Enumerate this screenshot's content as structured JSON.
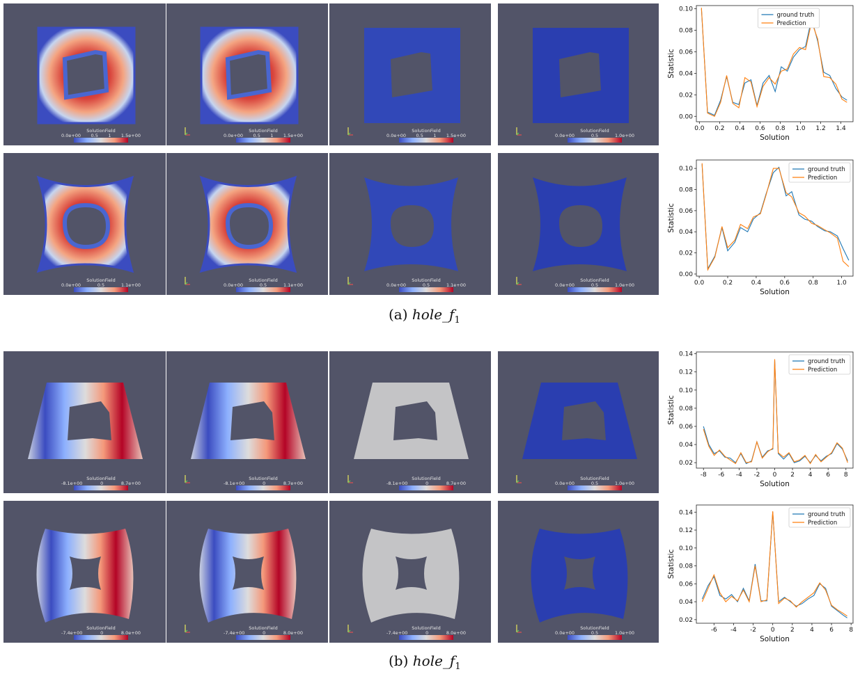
{
  "field_label": "SolutionField",
  "captions": [
    {
      "letter": "(a)",
      "name": "hole_f",
      "sub": "1"
    },
    {
      "letter": "(b)",
      "name": "hole_f",
      "sub": "1"
    }
  ],
  "rows": [
    {
      "colorbars": [
        {
          "min": "0.0e+00",
          "mid": "0.5",
          "mid2": "1",
          "max": "1.5e+00"
        },
        {
          "min": "0.0e+00",
          "mid": "0.5",
          "mid2": "1",
          "max": "1.5e+00"
        },
        {
          "min": "0.0e+00",
          "mid": "0.5",
          "mid2": "1",
          "max": "1.5e+00"
        },
        {
          "min": "0.0e+00",
          "mid": "0.5",
          "mid2": "",
          "max": "1.0e+00"
        }
      ]
    },
    {
      "colorbars": [
        {
          "min": "0.0e+00",
          "mid": "0.5",
          "mid2": "",
          "max": "1.1e+00"
        },
        {
          "min": "0.0e+00",
          "mid": "0.5",
          "mid2": "",
          "max": "1.1e+00"
        },
        {
          "min": "0.0e+00",
          "mid": "0.5",
          "mid2": "",
          "max": "1.1e+00"
        },
        {
          "min": "0.0e+00",
          "mid": "0.5",
          "mid2": "",
          "max": "1.0e+00"
        }
      ]
    },
    {
      "colorbars": [
        {
          "min": "-8.1e+00",
          "mid": "0",
          "mid2": "",
          "max": "8.7e+00"
        },
        {
          "min": "-8.1e+00",
          "mid": "0",
          "mid2": "",
          "max": "8.7e+00"
        },
        {
          "min": "-8.1e+00",
          "mid": "0",
          "mid2": "",
          "max": "8.7e+00"
        },
        {
          "min": "0.0e+00",
          "mid": "0.5",
          "mid2": "",
          "max": "1.0e+00"
        }
      ]
    },
    {
      "colorbars": [
        {
          "min": "-7.4e+00",
          "mid": "0",
          "mid2": "",
          "max": "8.0e+00"
        },
        {
          "min": "-7.4e+00",
          "mid": "0",
          "mid2": "",
          "max": "8.0e+00"
        },
        {
          "min": "-7.4e+00",
          "mid": "0",
          "mid2": "",
          "max": "8.0e+00"
        },
        {
          "min": "0.0e+00",
          "mid": "0.5",
          "mid2": "",
          "max": "1.0e+00"
        }
      ]
    }
  ],
  "colors": {
    "ground_truth": "#1f77b4",
    "prediction": "#ff7f0e",
    "background": "#525468"
  },
  "chart_data": [
    {
      "type": "line",
      "xlabel": "Solution",
      "ylabel": "Statistic",
      "xlim": [
        -0.03,
        1.52
      ],
      "ylim": [
        -0.005,
        0.103
      ],
      "xticks": [
        0.0,
        0.2,
        0.4,
        0.6,
        0.8,
        1.0,
        1.2,
        1.4
      ],
      "xtick_labels": [
        "0.0",
        "0.2",
        "0.4",
        "0.6",
        "0.8",
        "1.0",
        "1.2",
        "1.4"
      ],
      "yticks": [
        0.0,
        0.02,
        0.04,
        0.06,
        0.08,
        0.1
      ],
      "ytick_labels": [
        "0.00",
        "0.02",
        "0.04",
        "0.06",
        "0.08",
        "0.10"
      ],
      "legend": "top-center",
      "series": [
        {
          "name": "ground truth",
          "x": [
            0.02,
            0.08,
            0.15,
            0.21,
            0.27,
            0.33,
            0.39,
            0.45,
            0.51,
            0.57,
            0.63,
            0.69,
            0.75,
            0.81,
            0.87,
            0.93,
            0.99,
            1.05,
            1.11,
            1.17,
            1.23,
            1.29,
            1.35,
            1.41,
            1.46
          ],
          "y": [
            0.1,
            0.004,
            0.001,
            0.015,
            0.037,
            0.013,
            0.011,
            0.031,
            0.034,
            0.01,
            0.031,
            0.038,
            0.023,
            0.046,
            0.042,
            0.055,
            0.062,
            0.065,
            0.091,
            0.07,
            0.041,
            0.038,
            0.026,
            0.018,
            0.015
          ]
        },
        {
          "name": "Prediction",
          "x": [
            0.02,
            0.08,
            0.15,
            0.21,
            0.27,
            0.33,
            0.39,
            0.45,
            0.51,
            0.57,
            0.63,
            0.69,
            0.75,
            0.81,
            0.87,
            0.93,
            0.99,
            1.05,
            1.11,
            1.17,
            1.23,
            1.29,
            1.35,
            1.41,
            1.46
          ],
          "y": [
            0.101,
            0.003,
            0.0,
            0.013,
            0.038,
            0.012,
            0.008,
            0.036,
            0.032,
            0.009,
            0.028,
            0.036,
            0.03,
            0.042,
            0.044,
            0.058,
            0.064,
            0.062,
            0.088,
            0.072,
            0.037,
            0.036,
            0.03,
            0.016,
            0.013
          ]
        }
      ]
    },
    {
      "type": "line",
      "xlabel": "Solution",
      "ylabel": "Statistic",
      "xlim": [
        -0.02,
        1.08
      ],
      "ylim": [
        -0.002,
        0.108
      ],
      "xticks": [
        0.0,
        0.2,
        0.4,
        0.6,
        0.8,
        1.0
      ],
      "xtick_labels": [
        "0.0",
        "0.2",
        "0.4",
        "0.6",
        "0.8",
        "1.0"
      ],
      "yticks": [
        0.0,
        0.02,
        0.04,
        0.06,
        0.08,
        0.1
      ],
      "ytick_labels": [
        "0.00",
        "0.02",
        "0.04",
        "0.06",
        "0.08",
        "0.10"
      ],
      "legend": "top-right",
      "series": [
        {
          "name": "ground truth",
          "x": [
            0.02,
            0.06,
            0.11,
            0.16,
            0.2,
            0.25,
            0.29,
            0.34,
            0.38,
            0.43,
            0.47,
            0.52,
            0.56,
            0.61,
            0.65,
            0.7,
            0.74,
            0.79,
            0.83,
            0.88,
            0.92,
            0.97,
            1.01,
            1.05
          ],
          "y": [
            0.104,
            0.005,
            0.017,
            0.044,
            0.022,
            0.03,
            0.044,
            0.04,
            0.052,
            0.058,
            0.076,
            0.096,
            0.101,
            0.074,
            0.078,
            0.056,
            0.052,
            0.05,
            0.045,
            0.041,
            0.04,
            0.036,
            0.024,
            0.013
          ]
        },
        {
          "name": "Prediction",
          "x": [
            0.02,
            0.06,
            0.11,
            0.16,
            0.2,
            0.25,
            0.29,
            0.34,
            0.38,
            0.43,
            0.47,
            0.52,
            0.56,
            0.61,
            0.65,
            0.7,
            0.74,
            0.79,
            0.83,
            0.88,
            0.92,
            0.97,
            1.01,
            1.05
          ],
          "y": [
            0.105,
            0.004,
            0.016,
            0.045,
            0.025,
            0.032,
            0.047,
            0.043,
            0.054,
            0.057,
            0.075,
            0.1,
            0.1,
            0.077,
            0.073,
            0.058,
            0.055,
            0.048,
            0.046,
            0.042,
            0.039,
            0.034,
            0.012,
            0.007
          ]
        }
      ]
    },
    {
      "type": "line",
      "xlabel": "Solution",
      "ylabel": "Statistic",
      "xlim": [
        -8.8,
        8.8
      ],
      "ylim": [
        0.014,
        0.142
      ],
      "xticks": [
        -8,
        -6,
        -4,
        -2,
        0,
        2,
        4,
        6,
        8
      ],
      "xtick_labels": [
        "-8",
        "-6",
        "-4",
        "-2",
        "0",
        "2",
        "4",
        "6",
        "8"
      ],
      "yticks": [
        0.02,
        0.04,
        0.06,
        0.08,
        0.1,
        0.12,
        0.14
      ],
      "ytick_labels": [
        "0.02",
        "0.04",
        "0.06",
        "0.08",
        "0.10",
        "0.12",
        "0.14"
      ],
      "legend": "top-right",
      "series": [
        {
          "name": "ground truth",
          "x": [
            -8,
            -7.4,
            -6.8,
            -6.2,
            -5.6,
            -5.0,
            -4.4,
            -3.8,
            -3.2,
            -2.6,
            -2.0,
            -1.4,
            -0.8,
            -0.2,
            0.0,
            0.4,
            1.0,
            1.6,
            2.2,
            2.8,
            3.4,
            4.0,
            4.6,
            5.2,
            5.8,
            6.4,
            7.0,
            7.6,
            8.2
          ],
          "y": [
            0.06,
            0.04,
            0.03,
            0.033,
            0.026,
            0.025,
            0.02,
            0.03,
            0.019,
            0.022,
            0.043,
            0.026,
            0.033,
            0.035,
            0.133,
            0.03,
            0.024,
            0.03,
            0.02,
            0.022,
            0.027,
            0.02,
            0.028,
            0.022,
            0.027,
            0.03,
            0.041,
            0.035,
            0.022
          ]
        },
        {
          "name": "Prediction",
          "x": [
            -8,
            -7.4,
            -6.8,
            -6.2,
            -5.6,
            -5.0,
            -4.4,
            -3.8,
            -3.2,
            -2.6,
            -2.0,
            -1.4,
            -0.8,
            -0.2,
            0.0,
            0.4,
            1.0,
            1.6,
            2.2,
            2.8,
            3.4,
            4.0,
            4.6,
            5.2,
            5.8,
            6.4,
            7.0,
            7.6,
            8.2
          ],
          "y": [
            0.057,
            0.038,
            0.028,
            0.034,
            0.027,
            0.023,
            0.019,
            0.031,
            0.02,
            0.021,
            0.043,
            0.025,
            0.032,
            0.036,
            0.134,
            0.031,
            0.026,
            0.031,
            0.021,
            0.023,
            0.028,
            0.019,
            0.029,
            0.021,
            0.026,
            0.031,
            0.042,
            0.036,
            0.02
          ]
        }
      ]
    },
    {
      "type": "line",
      "xlabel": "Solution",
      "ylabel": "Statistic",
      "xlim": [
        -7.8,
        8.2
      ],
      "ylim": [
        0.016,
        0.148
      ],
      "xticks": [
        -6,
        -4,
        -2,
        0,
        2,
        4,
        6,
        8
      ],
      "xtick_labels": [
        "-6",
        "-4",
        "-2",
        "0",
        "2",
        "4",
        "6",
        "8"
      ],
      "yticks": [
        0.02,
        0.04,
        0.06,
        0.08,
        0.1,
        0.12,
        0.14
      ],
      "ytick_labels": [
        "0.02",
        "0.04",
        "0.06",
        "0.08",
        "0.10",
        "0.12",
        "0.14"
      ],
      "legend": "top-right",
      "series": [
        {
          "name": "ground truth",
          "x": [
            -7.2,
            -6.6,
            -6.0,
            -5.4,
            -4.8,
            -4.2,
            -3.6,
            -3.0,
            -2.4,
            -1.8,
            -1.2,
            -0.6,
            0.0,
            0.6,
            1.2,
            1.8,
            2.4,
            3.0,
            3.6,
            4.2,
            4.8,
            5.4,
            6.0,
            6.6,
            7.2,
            7.6
          ],
          "y": [
            0.043,
            0.058,
            0.068,
            0.047,
            0.043,
            0.048,
            0.04,
            0.055,
            0.041,
            0.082,
            0.041,
            0.041,
            0.14,
            0.04,
            0.045,
            0.04,
            0.035,
            0.038,
            0.043,
            0.047,
            0.06,
            0.055,
            0.035,
            0.03,
            0.025,
            0.022
          ]
        },
        {
          "name": "Prediction",
          "x": [
            -7.2,
            -6.6,
            -6.0,
            -5.4,
            -4.8,
            -4.2,
            -3.6,
            -3.0,
            -2.4,
            -1.8,
            -1.2,
            -0.6,
            0.0,
            0.6,
            1.2,
            1.8,
            2.4,
            3.0,
            3.6,
            4.2,
            4.8,
            5.4,
            6.0,
            6.6,
            7.2,
            7.6
          ],
          "y": [
            0.04,
            0.055,
            0.07,
            0.05,
            0.04,
            0.046,
            0.041,
            0.053,
            0.04,
            0.08,
            0.04,
            0.042,
            0.141,
            0.038,
            0.044,
            0.041,
            0.034,
            0.04,
            0.045,
            0.05,
            0.061,
            0.053,
            0.036,
            0.031,
            0.027,
            0.024
          ]
        }
      ]
    }
  ]
}
